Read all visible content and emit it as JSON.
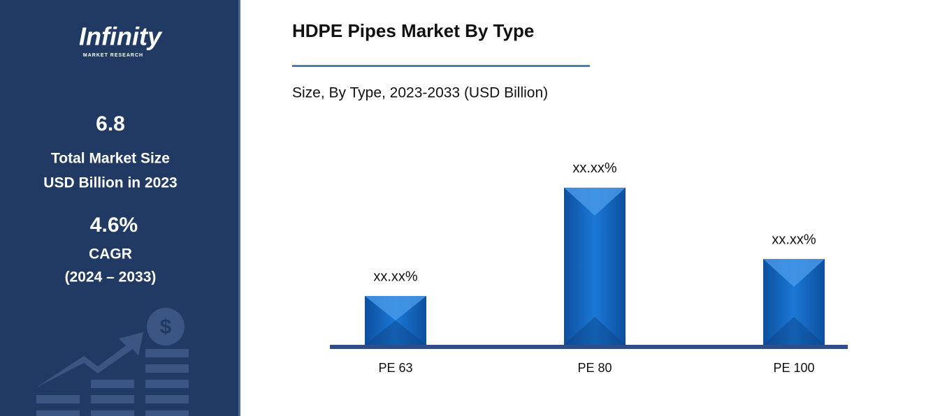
{
  "sidebar": {
    "logo": "Infinity",
    "logo_sub": "MARKET RESEARCH",
    "market_size": "6.8",
    "market_size_label_1": "Total Market Size",
    "market_size_label_2": "USD Billion in 2023",
    "cagr": "4.6%",
    "cagr_label": "CAGR",
    "cagr_period": "(2024 – 2033)"
  },
  "chart_data": {
    "type": "bar",
    "title": "HDPE Pipes Market By Type",
    "subtitle": "Size, By Type, 2023-2033 (USD Billion)",
    "categories": [
      "PE 63",
      "PE 80",
      "PE 100"
    ],
    "values": [
      16.7,
      53.8,
      29.4
    ],
    "value_labels": [
      "xx.xx%",
      "xx.xx%",
      "xx.xx%"
    ],
    "color": "#1565c0",
    "ylim": [
      0,
      60
    ]
  }
}
